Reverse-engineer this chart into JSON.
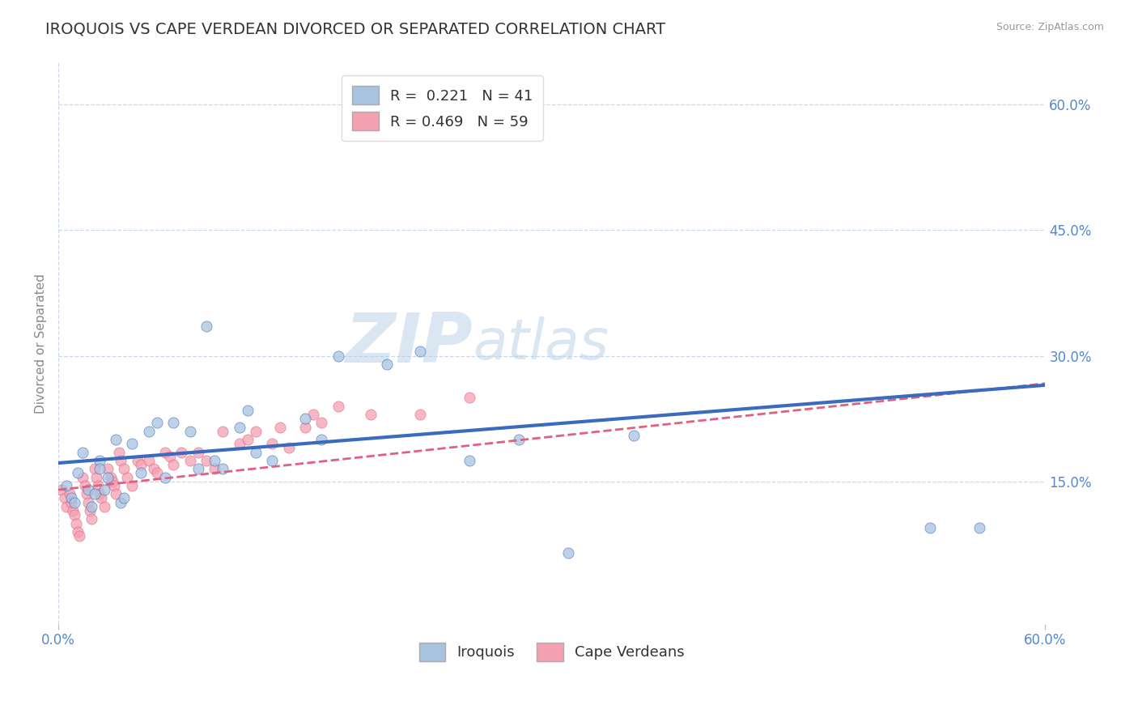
{
  "title": "IROQUOIS VS CAPE VERDEAN DIVORCED OR SEPARATED CORRELATION CHART",
  "source": "Source: ZipAtlas.com",
  "ylabel": "Divorced or Separated",
  "xlabel": "",
  "legend_label_bottom": "Iroquois",
  "legend_label_bottom2": "Cape Verdeans",
  "r_iroquois": 0.221,
  "n_iroquois": 41,
  "r_cape": 0.469,
  "n_cape": 59,
  "xlim": [
    0.0,
    0.6
  ],
  "ylim": [
    -0.02,
    0.65
  ],
  "yticks": [
    0.15,
    0.3,
    0.45,
    0.6
  ],
  "ytick_labels": [
    "15.0%",
    "30.0%",
    "45.0%",
    "60.0%"
  ],
  "xticks": [
    0.0,
    0.6
  ],
  "xtick_labels": [
    "0.0%",
    "60.0%"
  ],
  "color_iroquois": "#a8c4e0",
  "color_cape": "#f4a0b0",
  "line_color_iroquois": "#3a6bbf",
  "line_color_cape": "#e06080",
  "background_color": "#ffffff",
  "grid_color": "#c8d8e8",
  "title_color": "#333333",
  "axis_label_color": "#5588cc",
  "watermark_zip": "ZIP",
  "watermark_atlas": "atlas",
  "iroquois_x": [
    0.005,
    0.008,
    0.01,
    0.012,
    0.015,
    0.018,
    0.02,
    0.022,
    0.025,
    0.025,
    0.028,
    0.03,
    0.035,
    0.038,
    0.04,
    0.045,
    0.05,
    0.055,
    0.06,
    0.065,
    0.07,
    0.08,
    0.085,
    0.09,
    0.095,
    0.1,
    0.11,
    0.115,
    0.12,
    0.13,
    0.15,
    0.16,
    0.17,
    0.2,
    0.22,
    0.25,
    0.28,
    0.31,
    0.35,
    0.53,
    0.56
  ],
  "iroquois_y": [
    0.145,
    0.13,
    0.125,
    0.16,
    0.185,
    0.14,
    0.12,
    0.135,
    0.175,
    0.165,
    0.14,
    0.155,
    0.2,
    0.125,
    0.13,
    0.195,
    0.16,
    0.21,
    0.22,
    0.155,
    0.22,
    0.21,
    0.165,
    0.335,
    0.175,
    0.165,
    0.215,
    0.235,
    0.185,
    0.175,
    0.225,
    0.2,
    0.3,
    0.29,
    0.305,
    0.175,
    0.2,
    0.065,
    0.205,
    0.095,
    0.095
  ],
  "cape_x": [
    0.002,
    0.004,
    0.005,
    0.007,
    0.008,
    0.009,
    0.01,
    0.011,
    0.012,
    0.013,
    0.015,
    0.016,
    0.017,
    0.018,
    0.019,
    0.02,
    0.022,
    0.023,
    0.024,
    0.025,
    0.026,
    0.028,
    0.03,
    0.032,
    0.033,
    0.034,
    0.035,
    0.037,
    0.038,
    0.04,
    0.042,
    0.045,
    0.048,
    0.05,
    0.055,
    0.058,
    0.06,
    0.065,
    0.068,
    0.07,
    0.075,
    0.08,
    0.085,
    0.09,
    0.095,
    0.1,
    0.11,
    0.115,
    0.12,
    0.13,
    0.135,
    0.14,
    0.15,
    0.155,
    0.16,
    0.17,
    0.19,
    0.22,
    0.25
  ],
  "cape_y": [
    0.14,
    0.13,
    0.12,
    0.135,
    0.125,
    0.115,
    0.11,
    0.1,
    0.09,
    0.085,
    0.155,
    0.145,
    0.135,
    0.125,
    0.115,
    0.105,
    0.165,
    0.155,
    0.145,
    0.135,
    0.13,
    0.12,
    0.165,
    0.155,
    0.15,
    0.145,
    0.135,
    0.185,
    0.175,
    0.165,
    0.155,
    0.145,
    0.175,
    0.17,
    0.175,
    0.165,
    0.16,
    0.185,
    0.18,
    0.17,
    0.185,
    0.175,
    0.185,
    0.175,
    0.165,
    0.21,
    0.195,
    0.2,
    0.21,
    0.195,
    0.215,
    0.19,
    0.215,
    0.23,
    0.22,
    0.24,
    0.23,
    0.23,
    0.25
  ],
  "trendline_iroquois_x0": 0.0,
  "trendline_iroquois_y0": 0.172,
  "trendline_iroquois_x1": 0.6,
  "trendline_iroquois_y1": 0.265,
  "trendline_cape_x0": 0.0,
  "trendline_cape_y0": 0.14,
  "trendline_cape_x1": 0.6,
  "trendline_cape_y1": 0.267
}
